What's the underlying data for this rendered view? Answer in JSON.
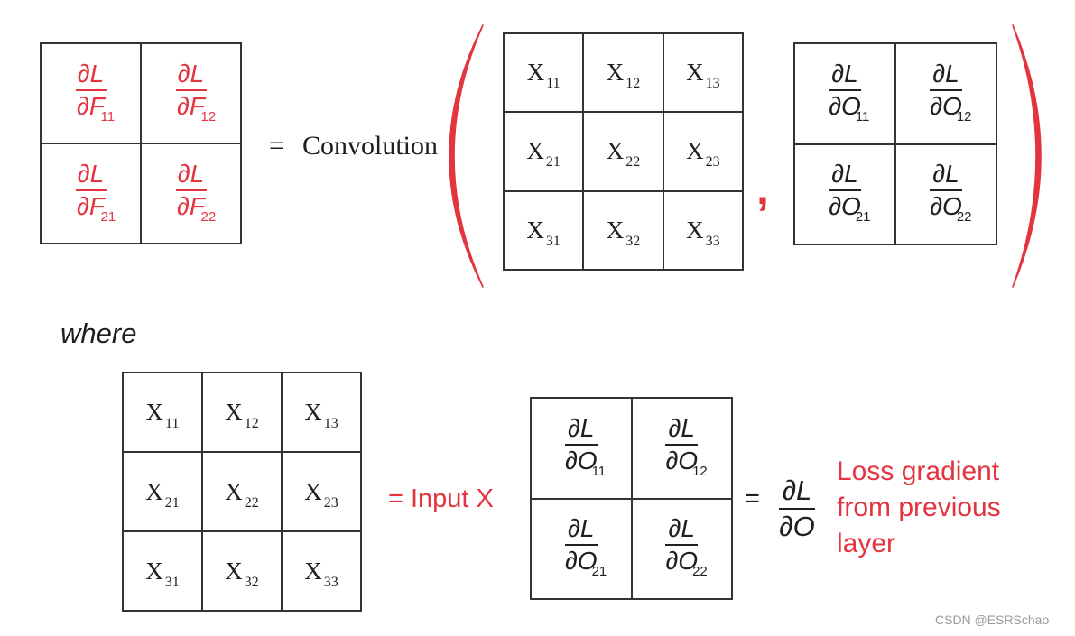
{
  "filter_gradient": {
    "cells": [
      {
        "numerator": "∂L",
        "denominator": "∂F",
        "subscript": "11"
      },
      {
        "numerator": "∂L",
        "denominator": "∂F",
        "subscript": "12"
      },
      {
        "numerator": "∂L",
        "denominator": "∂F",
        "subscript": "21"
      },
      {
        "numerator": "∂L",
        "denominator": "∂F",
        "subscript": "22"
      }
    ]
  },
  "equation": {
    "equals": "=",
    "operator": "Convolution",
    "comma": ","
  },
  "input_matrix": {
    "cells": [
      {
        "symbol": "X",
        "subscript": "11"
      },
      {
        "symbol": "X",
        "subscript": "12"
      },
      {
        "symbol": "X",
        "subscript": "13"
      },
      {
        "symbol": "X",
        "subscript": "21"
      },
      {
        "symbol": "X",
        "subscript": "22"
      },
      {
        "symbol": "X",
        "subscript": "23"
      },
      {
        "symbol": "X",
        "subscript": "31"
      },
      {
        "symbol": "X",
        "subscript": "32"
      },
      {
        "symbol": "X",
        "subscript": "33"
      }
    ]
  },
  "output_gradient": {
    "cells": [
      {
        "numerator": "∂L",
        "denominator": "∂O",
        "subscript": "11"
      },
      {
        "numerator": "∂L",
        "denominator": "∂O",
        "subscript": "12"
      },
      {
        "numerator": "∂L",
        "denominator": "∂O",
        "subscript": "21"
      },
      {
        "numerator": "∂L",
        "denominator": "∂O",
        "subscript": "22"
      }
    ]
  },
  "where_label": "where",
  "definitions": {
    "input_label": "= Input X",
    "equals": "=",
    "gradient_symbol": {
      "numerator": "∂L",
      "denominator": "∂O"
    },
    "loss_gradient_lines": [
      "Loss gradient",
      "from previous",
      "layer"
    ]
  },
  "watermark": "CSDN @ESRSchao",
  "colors": {
    "accent": "#e3343f",
    "text": "#1f1f1f",
    "grid_line": "#333333",
    "watermark": "#9a9a9a"
  }
}
